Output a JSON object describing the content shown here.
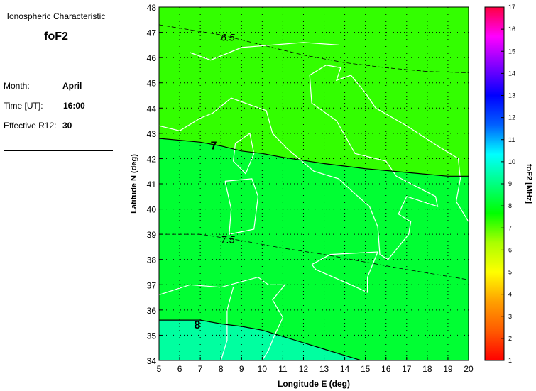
{
  "info_panel": {
    "heading": "Ionospheric Characteristic",
    "parameter": "foF2",
    "rows": [
      {
        "label": "Month:",
        "value": "April"
      },
      {
        "label": "Time [UT]:",
        "value": "16:00"
      },
      {
        "label": "Effective R12:",
        "value": "30"
      }
    ]
  },
  "chart_data": {
    "type": "contour-map",
    "xlabel": "Longitude E (deg)",
    "ylabel": "Latitude N (deg)",
    "xlim": [
      5,
      20
    ],
    "ylim": [
      34,
      48
    ],
    "x_ticks": [
      "5",
      "6",
      "7",
      "8",
      "9",
      "10",
      "11",
      "12",
      "13",
      "14",
      "15",
      "16",
      "17",
      "18",
      "19",
      "20"
    ],
    "y_ticks": [
      "34",
      "35",
      "36",
      "37",
      "38",
      "39",
      "40",
      "41",
      "42",
      "43",
      "44",
      "45",
      "46",
      "47",
      "48"
    ],
    "grid": true,
    "contours": [
      {
        "level": "6.5",
        "style": "dashed",
        "label_at": [
          8.0,
          46.8
        ],
        "points": [
          [
            5,
            47.3
          ],
          [
            8,
            46.9
          ],
          [
            10,
            46.5
          ],
          [
            12,
            46.1
          ],
          [
            14,
            45.8
          ],
          [
            16,
            45.6
          ],
          [
            18,
            45.45
          ],
          [
            20,
            45.4
          ]
        ]
      },
      {
        "level": "7",
        "style": "solid",
        "label_at": [
          7.5,
          42.5
        ],
        "points": [
          [
            5,
            42.8
          ],
          [
            7,
            42.65
          ],
          [
            8,
            42.5
          ],
          [
            9,
            42.3
          ],
          [
            10,
            42.2
          ],
          [
            11,
            42.05
          ],
          [
            13,
            41.8
          ],
          [
            15,
            41.6
          ],
          [
            17,
            41.45
          ],
          [
            19,
            41.3
          ],
          [
            20,
            41.3
          ]
        ]
      },
      {
        "level": "7.5",
        "style": "dashed",
        "label_at": [
          8.0,
          38.8
        ],
        "points": [
          [
            5,
            39.0
          ],
          [
            7,
            39.0
          ],
          [
            9,
            38.75
          ],
          [
            11,
            38.45
          ],
          [
            13,
            38.2
          ],
          [
            15,
            37.9
          ],
          [
            17,
            37.6
          ],
          [
            20,
            37.2
          ]
        ]
      },
      {
        "level": "8",
        "style": "solid",
        "label_at": [
          6.7,
          35.4
        ],
        "points": [
          [
            5,
            35.6
          ],
          [
            6,
            35.6
          ],
          [
            7,
            35.6
          ],
          [
            8,
            35.45
          ],
          [
            9,
            35.35
          ],
          [
            10,
            35.2
          ],
          [
            11,
            34.95
          ],
          [
            12,
            34.7
          ],
          [
            13,
            34.45
          ],
          [
            14,
            34.2
          ],
          [
            14.8,
            34.0
          ]
        ]
      }
    ],
    "band_colors": {
      "below_7": "#33ff00",
      "7_to_8": "#00ff33",
      "above_8": "#00ffa0"
    },
    "coastline_color": "#ffffff",
    "colorbar": {
      "label": "foF2 [MHz]",
      "range": [
        1,
        17
      ],
      "ticks": [
        "1",
        "2",
        "3",
        "4",
        "5",
        "6",
        "7",
        "8",
        "9",
        "10",
        "11",
        "12",
        "13",
        "14",
        "15",
        "16",
        "17"
      ],
      "stops": [
        "#ff0000",
        "#ff5a00",
        "#ffa000",
        "#ffff00",
        "#aaff00",
        "#00ff00",
        "#00ff80",
        "#00ffff",
        "#0060ff",
        "#0000ff",
        "#8000ff",
        "#ff00ff",
        "#ff0040"
      ]
    }
  }
}
